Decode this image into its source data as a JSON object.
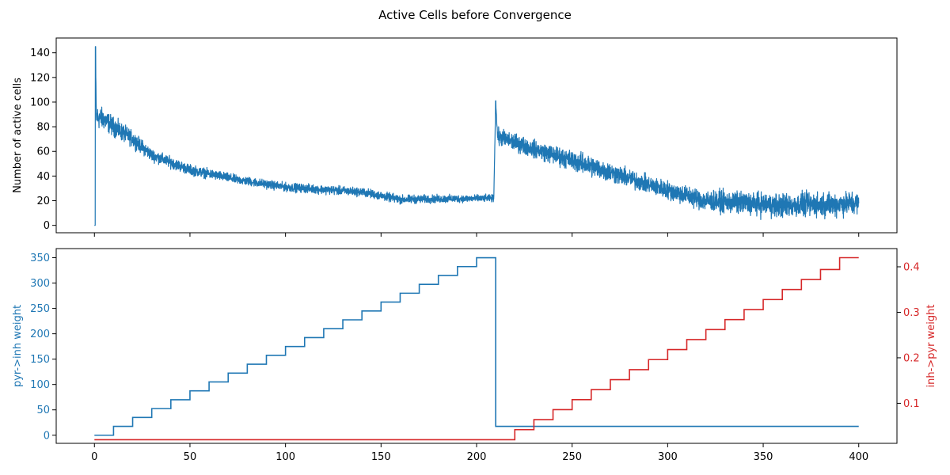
{
  "figure": {
    "title": "Active Cells before Convergence"
  },
  "chart_data": [
    {
      "type": "line",
      "title": "",
      "xlabel": "",
      "ylabel": "Number of active cells",
      "xlim": [
        -20,
        420
      ],
      "ylim": [
        -6,
        152
      ],
      "xticks": [
        0,
        50,
        100,
        150,
        200,
        250,
        300,
        350,
        400
      ],
      "xticklabels_visible": false,
      "yticks": [
        0,
        20,
        40,
        60,
        80,
        100,
        120,
        140
      ],
      "grid": false,
      "series": [
        {
          "color": "#1f77b4",
          "description_points": [
            {
              "x": 0,
              "center": 0,
              "spread": 0
            },
            {
              "x": 0.5,
              "center": 145,
              "spread": 0
            },
            {
              "x": 1,
              "center": 88,
              "spread": 14
            },
            {
              "x": 5,
              "center": 86,
              "spread": 12
            },
            {
              "x": 10,
              "center": 80,
              "spread": 11
            },
            {
              "x": 20,
              "center": 70,
              "spread": 9
            },
            {
              "x": 30,
              "center": 57,
              "spread": 7
            },
            {
              "x": 50,
              "center": 45,
              "spread": 6
            },
            {
              "x": 75,
              "center": 37,
              "spread": 5
            },
            {
              "x": 100,
              "center": 31,
              "spread": 5
            },
            {
              "x": 140,
              "center": 27,
              "spread": 5
            },
            {
              "x": 160,
              "center": 21,
              "spread": 5
            },
            {
              "x": 209,
              "center": 22,
              "spread": 4
            },
            {
              "x": 210,
              "center": 100,
              "spread": 0
            },
            {
              "x": 211,
              "center": 72,
              "spread": 10
            },
            {
              "x": 230,
              "center": 62,
              "spread": 10
            },
            {
              "x": 260,
              "center": 48,
              "spread": 12
            },
            {
              "x": 290,
              "center": 33,
              "spread": 10
            },
            {
              "x": 320,
              "center": 20,
              "spread": 12
            },
            {
              "x": 360,
              "center": 16,
              "spread": 14
            },
            {
              "x": 400,
              "center": 18,
              "spread": 14
            }
          ]
        }
      ]
    },
    {
      "type": "line",
      "title": "",
      "xlabel": "",
      "ylabel": "pyr->inh weight",
      "ylabel_right": "inh->pyr weight",
      "xlim": [
        -20,
        420
      ],
      "ylim": [
        -16,
        368
      ],
      "ylim_right": [
        0.012,
        0.44
      ],
      "xticks": [
        0,
        50,
        100,
        150,
        200,
        250,
        300,
        350,
        400
      ],
      "yticks": [
        0,
        50,
        100,
        150,
        200,
        250,
        300,
        350
      ],
      "yticks_right": [
        0.1,
        0.2,
        0.3,
        0.4
      ],
      "grid": false,
      "series": [
        {
          "axis": "left",
          "color": "#1f77b4",
          "step": true,
          "x": [
            0,
            10,
            20,
            30,
            40,
            50,
            60,
            70,
            80,
            90,
            100,
            110,
            120,
            130,
            140,
            150,
            160,
            170,
            180,
            190,
            200,
            210,
            400
          ],
          "y": [
            0,
            17.5,
            35,
            52.5,
            70,
            87.5,
            105,
            122.5,
            140,
            157.5,
            175,
            192.5,
            210,
            227.5,
            245,
            262.5,
            280,
            297.5,
            315,
            332.5,
            350,
            17.5,
            17.5
          ]
        },
        {
          "axis": "right",
          "color": "#d62728",
          "step": true,
          "x": [
            0,
            220,
            230,
            240,
            250,
            260,
            270,
            280,
            290,
            300,
            310,
            320,
            330,
            340,
            350,
            360,
            370,
            380,
            390,
            400
          ],
          "y": [
            0.02,
            0.042,
            0.064,
            0.086,
            0.108,
            0.13,
            0.152,
            0.174,
            0.196,
            0.218,
            0.24,
            0.262,
            0.284,
            0.306,
            0.328,
            0.35,
            0.372,
            0.394,
            0.42,
            0.42
          ]
        }
      ]
    }
  ]
}
